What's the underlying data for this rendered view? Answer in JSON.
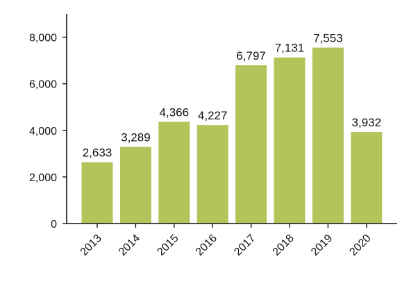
{
  "chart_data": {
    "type": "bar",
    "categories": [
      "2013",
      "2014",
      "2015",
      "2016",
      "2017",
      "2018",
      "2019",
      "2020"
    ],
    "values": [
      2633,
      3289,
      4366,
      4227,
      6797,
      7131,
      7553,
      3932
    ],
    "value_labels": [
      "2,633",
      "3,289",
      "4,366",
      "4,227",
      "6,797",
      "7,131",
      "7,553",
      "3,932"
    ],
    "y_ticks": [
      0,
      2000,
      4000,
      6000,
      8000
    ],
    "y_tick_labels": [
      "0",
      "2,000",
      "4,000",
      "6,000",
      "8,000"
    ],
    "ylim": [
      0,
      9000
    ],
    "bar_color": "#b3c55a",
    "grid": false,
    "title": "",
    "xlabel": "",
    "ylabel": ""
  }
}
